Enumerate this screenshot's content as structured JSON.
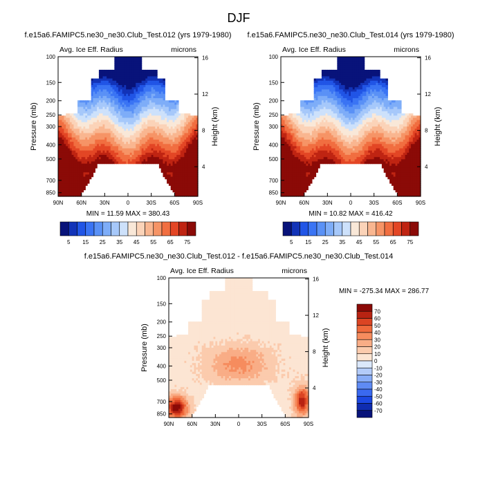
{
  "figure": {
    "title": "DJF"
  },
  "chart_data": [
    {
      "type": "heatmap",
      "title": "f.e15a6.FAMIPC5.ne30_ne30.Club_Test.012 (yrs 1979-1980)",
      "left_label": "Avg. Ice Eff. Radius",
      "right_label": "microns",
      "xlabel": "",
      "ylabel": "Pressure (mb)",
      "y2label": "Height (km)",
      "x_ticks": [
        "90N",
        "60N",
        "30N",
        "0",
        "30S",
        "60S",
        "90S"
      ],
      "y_ticks": [
        "100",
        "150",
        "200",
        "250",
        "300",
        "400",
        "500",
        "700",
        "850"
      ],
      "y2_ticks": [
        "16",
        "12",
        "8",
        "4"
      ],
      "stats": "MIN = 11.59  MAX = 380.43",
      "colorbar_labels": [
        "5",
        "15",
        "25",
        "35",
        "45",
        "55",
        "65",
        "75"
      ],
      "colorbar_levels": [
        0,
        5,
        10,
        15,
        20,
        25,
        30,
        35,
        40,
        45,
        50,
        55,
        60,
        65,
        70,
        75,
        80
      ]
    },
    {
      "type": "heatmap",
      "title": "f.e15a6.FAMIPC5.ne30_ne30.Club_Test.014 (yrs 1979-1980)",
      "left_label": "Avg. Ice Eff. Radius",
      "right_label": "microns",
      "xlabel": "",
      "ylabel": "Pressure (mb)",
      "y2label": "Height (km)",
      "x_ticks": [
        "90N",
        "60N",
        "30N",
        "0",
        "30S",
        "60S",
        "90S"
      ],
      "y_ticks": [
        "100",
        "150",
        "200",
        "250",
        "300",
        "400",
        "500",
        "700",
        "850"
      ],
      "y2_ticks": [
        "16",
        "12",
        "8",
        "4"
      ],
      "stats": "MIN = 10.82  MAX = 416.42",
      "colorbar_labels": [
        "5",
        "15",
        "25",
        "35",
        "45",
        "55",
        "65",
        "75"
      ],
      "colorbar_levels": [
        0,
        5,
        10,
        15,
        20,
        25,
        30,
        35,
        40,
        45,
        50,
        55,
        60,
        65,
        70,
        75,
        80
      ]
    },
    {
      "type": "heatmap",
      "title": "f.e15a6.FAMIPC5.ne30_ne30.Club_Test.012 - f.e15a6.FAMIPC5.ne30_ne30.Club_Test.014",
      "left_label": "Avg. Ice Eff. Radius",
      "right_label": "microns",
      "xlabel": "",
      "ylabel": "Pressure (mb)",
      "y2label": "Height (km)",
      "x_ticks": [
        "90N",
        "60N",
        "30N",
        "0",
        "30S",
        "60S",
        "90S"
      ],
      "y_ticks": [
        "100",
        "150",
        "200",
        "250",
        "300",
        "400",
        "500",
        "700",
        "850"
      ],
      "y2_ticks": [
        "16",
        "12",
        "8",
        "4"
      ],
      "stats": "MIN = -275.34  MAX = 286.77",
      "colorbar_labels": [
        "70",
        "60",
        "50",
        "40",
        "30",
        "20",
        "10",
        "0",
        "-10",
        "-20",
        "-30",
        "-40",
        "-50",
        "-60",
        "-70"
      ],
      "colorbar_levels": [
        -80,
        -70,
        -60,
        -50,
        -40,
        -30,
        -20,
        -10,
        0,
        10,
        20,
        30,
        40,
        50,
        60,
        70,
        80
      ]
    }
  ],
  "colors": {
    "abs_palette": [
      "#08137a",
      "#1233b8",
      "#2155e6",
      "#3a74f4",
      "#5a91f6",
      "#7eadf8",
      "#a6c8fa",
      "#cde1fb",
      "#f9e8d8",
      "#fbd3b8",
      "#f9b690",
      "#f69466",
      "#f16e40",
      "#e34625",
      "#bf2412",
      "#8b0a07"
    ],
    "diff_palette": [
      "#08137a",
      "#0f2cb0",
      "#1c48e2",
      "#3a69f0",
      "#5f8bf4",
      "#88acf7",
      "#b3cbf9",
      "#dbe8fb",
      "#fce5d3",
      "#fbcbad",
      "#f9ad86",
      "#f68c5e",
      "#ef6a3c",
      "#db4423",
      "#b82312",
      "#8b0a07"
    ]
  }
}
